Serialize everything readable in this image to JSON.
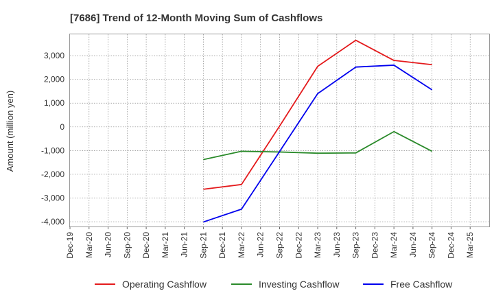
{
  "chart_data": {
    "type": "line",
    "title": "[7686]  Trend of 12-Month Moving Sum of Cashflows",
    "ylabel": "Amount (million yen)",
    "xlabel": "",
    "categories": [
      "Dec-19",
      "Mar-20",
      "Jun-20",
      "Sep-20",
      "Dec-20",
      "Mar-21",
      "Jun-21",
      "Sep-21",
      "Dec-21",
      "Mar-22",
      "Jun-22",
      "Sep-22",
      "Dec-22",
      "Mar-23",
      "Jun-23",
      "Sep-23",
      "Dec-23",
      "Mar-24",
      "Jun-24",
      "Sep-24",
      "Dec-24",
      "Mar-25"
    ],
    "ylim": [
      -4200,
      3900
    ],
    "yticks": [
      -4000,
      -3000,
      -2000,
      -1000,
      0,
      1000,
      2000,
      3000
    ],
    "ytick_labels": [
      "-4,000",
      "-3,000",
      "-2,000",
      "-1,000",
      "0",
      "1,000",
      "2,000",
      "3,000"
    ],
    "grid": true,
    "legend_position": "bottom",
    "series": [
      {
        "name": "Operating Cashflow",
        "color": "#e41a1c",
        "points": [
          [
            "Sep-21",
            -2630
          ],
          [
            "Mar-22",
            -2430
          ],
          [
            "Sep-22",
            30
          ],
          [
            "Mar-23",
            2550
          ],
          [
            "Sep-23",
            3650
          ],
          [
            "Mar-24",
            2800
          ],
          [
            "Sep-24",
            2620
          ]
        ]
      },
      {
        "name": "Investing Cashflow",
        "color": "#2a8a2a",
        "points": [
          [
            "Sep-21",
            -1380
          ],
          [
            "Mar-22",
            -1030
          ],
          [
            "Sep-22",
            -1060
          ],
          [
            "Mar-23",
            -1110
          ],
          [
            "Sep-23",
            -1100
          ],
          [
            "Mar-24",
            -200
          ],
          [
            "Sep-24",
            -1030
          ]
        ]
      },
      {
        "name": "Free Cashflow",
        "color": "#0000ee",
        "points": [
          [
            "Sep-21",
            -4010
          ],
          [
            "Mar-22",
            -3470
          ],
          [
            "Sep-22",
            -1040
          ],
          [
            "Mar-23",
            1400
          ],
          [
            "Sep-23",
            2520
          ],
          [
            "Mar-24",
            2600
          ],
          [
            "Sep-24",
            1560
          ]
        ]
      }
    ]
  }
}
